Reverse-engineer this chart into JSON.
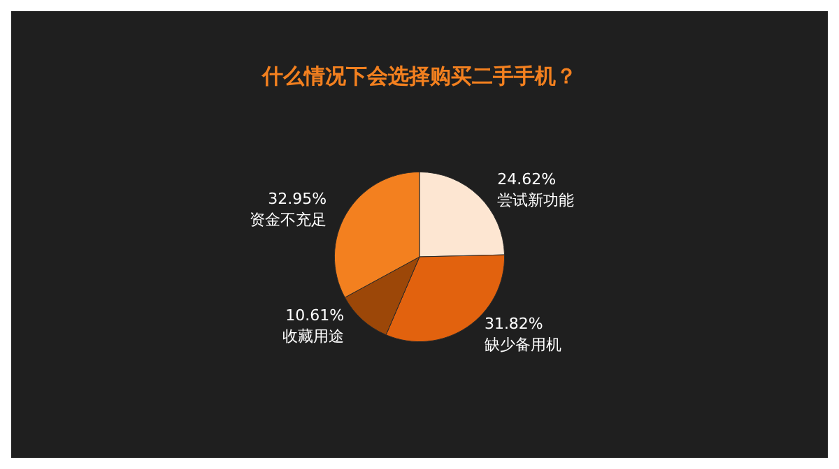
{
  "chart_data": {
    "type": "pie",
    "title": "什么情况下会选择购买二手手机？",
    "categories": [
      "尝试新功能",
      "缺少备用机",
      "收藏用途",
      "资金不充足"
    ],
    "values": [
      24.62,
      31.82,
      10.61,
      32.95
    ],
    "value_labels": [
      "24.62%",
      "31.82%",
      "10.61%",
      "32.95%"
    ],
    "colors": [
      "#fde6d2",
      "#e2620e",
      "#9c4708",
      "#f3801f"
    ]
  }
}
